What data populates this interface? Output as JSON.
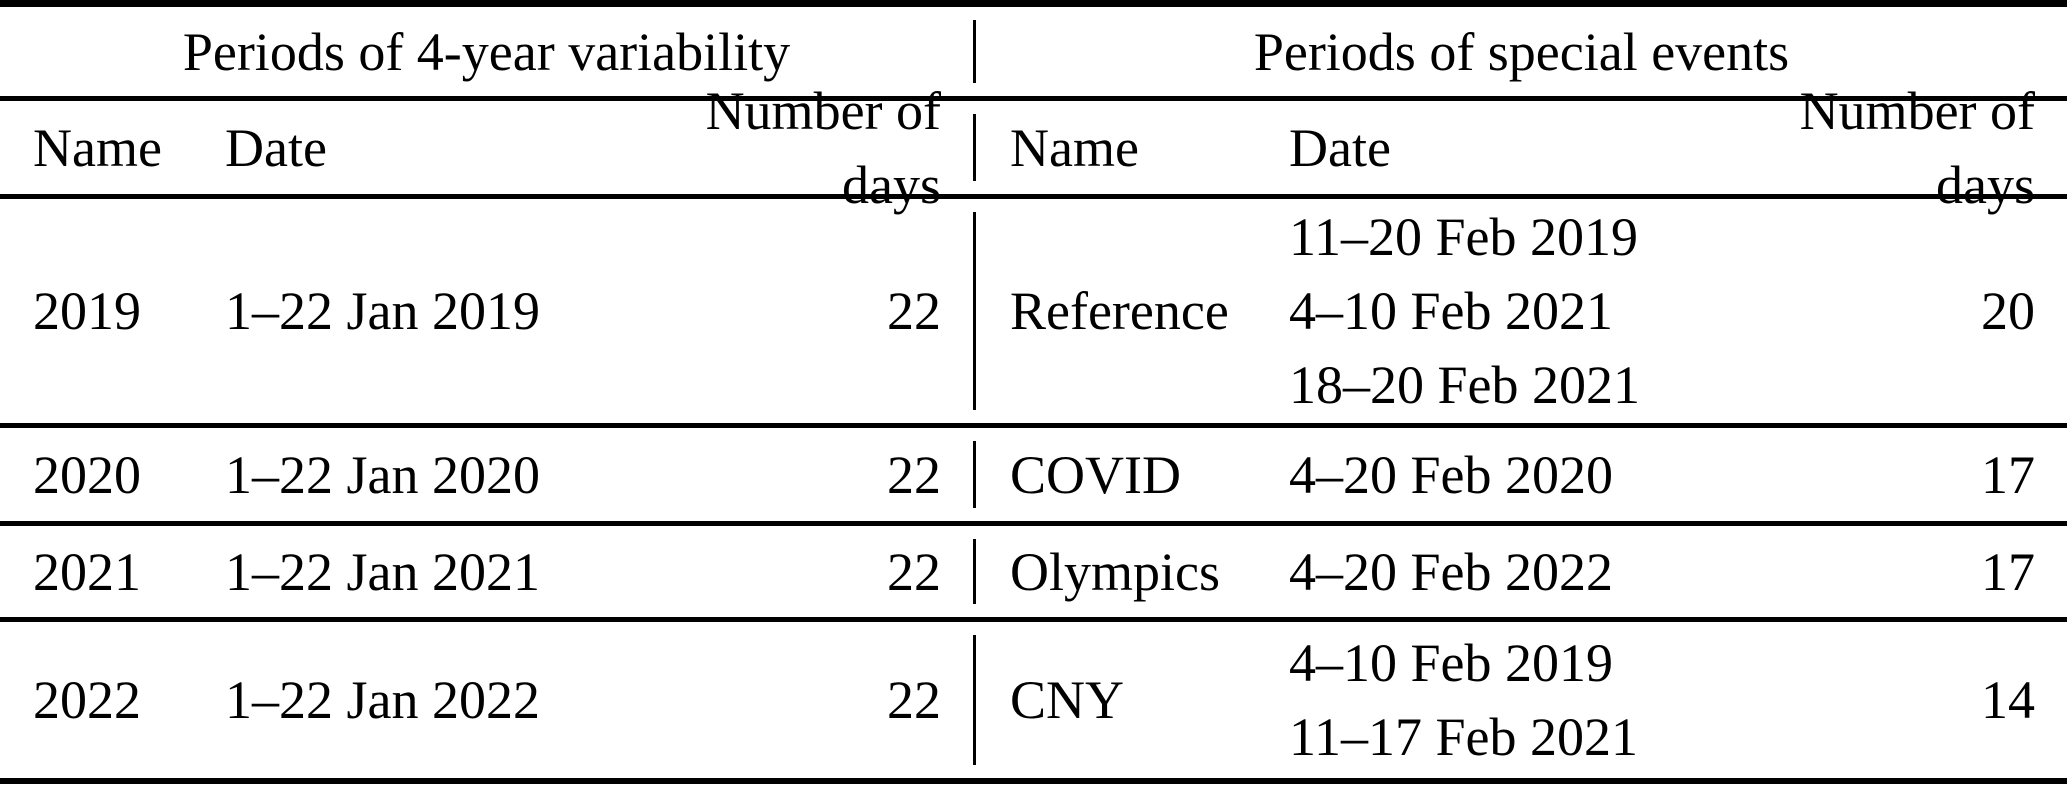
{
  "table": {
    "left_section": {
      "title": "Periods of 4-year variability",
      "headers": {
        "name": "Name",
        "date": "Date",
        "days": "Number of days"
      }
    },
    "right_section": {
      "title": "Periods of special events",
      "headers": {
        "name": "Name",
        "date": "Date",
        "days": "Number of days"
      }
    },
    "rows": [
      {
        "left": {
          "name": "2019",
          "date": "1–22 Jan 2019",
          "days": "22"
        },
        "right": {
          "name": "Reference",
          "date": "11–20 Feb 2019\n4–10 Feb 2021\n18–20 Feb 2021",
          "days": "20"
        }
      },
      {
        "left": {
          "name": "2020",
          "date": "1–22 Jan 2020",
          "days": "22"
        },
        "right": {
          "name": "COVID",
          "date": "4–20 Feb 2020",
          "days": "17"
        }
      },
      {
        "left": {
          "name": "2021",
          "date": "1–22 Jan 2021",
          "days": "22"
        },
        "right": {
          "name": "Olympics",
          "date": "4–20 Feb 2022",
          "days": "17"
        }
      },
      {
        "left": {
          "name": "2022",
          "date": "1–22 Jan 2022",
          "days": "22"
        },
        "right": {
          "name": "CNY",
          "date": "4–10 Feb 2019\n11–17 Feb 2021",
          "days": "14"
        }
      }
    ],
    "colors": {
      "text": "#000000",
      "rules": "#000000",
      "background": "#ffffff"
    }
  }
}
